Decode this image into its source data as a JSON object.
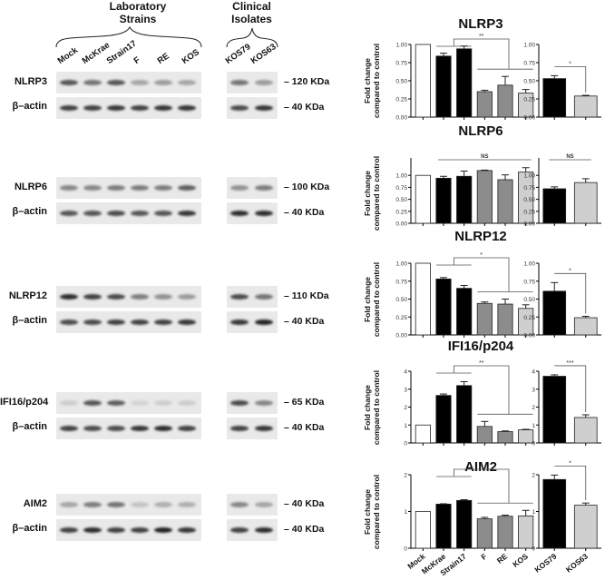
{
  "blot": {
    "group_headers": {
      "laboratory": "Laboratory\nStrains",
      "laboratory_line1": "Laboratory",
      "laboratory_line2": "Strains",
      "clinical_line1": "Clinical",
      "clinical_line2": "Isolates"
    },
    "lab_lanes": [
      "Mock",
      "McKrae",
      "Strain17",
      "F",
      "RE",
      "KOS"
    ],
    "clinical_lanes": [
      "KOS79",
      "KOS63"
    ],
    "rows": [
      {
        "target": "NLRP3",
        "target_kda": "120 KDa",
        "loading": "β–actin",
        "loading_kda": "40 KDa",
        "target_intensity_lab": [
          0.75,
          0.6,
          0.75,
          0.35,
          0.4,
          0.35
        ],
        "target_intensity_clin": [
          0.6,
          0.4
        ],
        "actin_intensity_lab": [
          0.85,
          0.85,
          0.9,
          0.85,
          0.9,
          0.9
        ],
        "actin_intensity_clin": [
          0.8,
          0.9
        ]
      },
      {
        "target": "NLRP6",
        "target_kda": "100 KDa",
        "loading": "β–actin",
        "loading_kda": "40 KDa",
        "target_intensity_lab": [
          0.5,
          0.5,
          0.55,
          0.55,
          0.55,
          0.7
        ],
        "target_intensity_clin": [
          0.45,
          0.55
        ],
        "actin_intensity_lab": [
          0.75,
          0.75,
          0.8,
          0.75,
          0.75,
          0.9
        ],
        "actin_intensity_clin": [
          0.95,
          0.95
        ]
      },
      {
        "target": "NLRP12",
        "target_kda": "110 KDa",
        "loading": "β–actin",
        "loading_kda": "40 KDa",
        "target_intensity_lab": [
          0.95,
          0.85,
          0.8,
          0.55,
          0.45,
          0.4
        ],
        "target_intensity_clin": [
          0.8,
          0.6
        ],
        "actin_intensity_lab": [
          0.8,
          0.8,
          0.85,
          0.85,
          0.85,
          0.9
        ],
        "actin_intensity_clin": [
          0.9,
          1.0
        ]
      },
      {
        "target": "IFI16/p204",
        "target_kda": "65 KDa",
        "loading": "β–actin",
        "loading_kda": "40 KDa",
        "target_intensity_lab": [
          0.15,
          0.75,
          0.7,
          0.12,
          0.15,
          0.15
        ],
        "target_intensity_clin": [
          0.8,
          0.5
        ],
        "actin_intensity_lab": [
          0.85,
          0.8,
          0.8,
          0.9,
          0.95,
          0.85
        ],
        "actin_intensity_clin": [
          0.85,
          0.9
        ]
      },
      {
        "target": "AIM2",
        "target_kda": "40 KDa",
        "loading": "β–actin",
        "loading_kda": "40 KDa",
        "target_intensity_lab": [
          0.35,
          0.55,
          0.6,
          0.2,
          0.3,
          0.3
        ],
        "target_intensity_clin": [
          0.5,
          0.35
        ],
        "actin_intensity_lab": [
          0.85,
          0.95,
          0.85,
          0.85,
          1.0,
          0.9
        ],
        "actin_intensity_clin": [
          0.85,
          0.95
        ]
      }
    ]
  },
  "chart_data": [
    {
      "type": "bar",
      "title": "NLRP3",
      "ylabel": "Fold change compared to control",
      "ylabel_line1": "Fold change",
      "ylabel_line2": "compared to control",
      "panels": [
        {
          "categories": [
            "Mock",
            "McKrae",
            "Strain17",
            "F",
            "RE",
            "KOS"
          ],
          "values": [
            1.0,
            0.84,
            0.94,
            0.35,
            0.44,
            0.33
          ],
          "errors": [
            0,
            0.04,
            0.04,
            0.02,
            0.12,
            0.05
          ],
          "colors": [
            "#ffffff",
            "#000000",
            "#000000",
            "#8c8c8c",
            "#8c8c8c",
            "#cfcfcf"
          ],
          "ylim": [
            0,
            1.0
          ],
          "yticks": [
            "0.00",
            "0.25",
            "0.50",
            "0.75",
            "1.00"
          ],
          "ytick_values": [
            0,
            0.25,
            0.5,
            0.75,
            1.0
          ],
          "significance": "**"
        },
        {
          "categories": [
            "KOS79",
            "KOS63"
          ],
          "values": [
            0.53,
            0.29
          ],
          "errors": [
            0.04,
            0.01
          ],
          "colors": [
            "#000000",
            "#cfcfcf"
          ],
          "ylim": [
            0,
            1.0
          ],
          "yticks": [
            "0.00",
            "0.25",
            "0.50",
            "0.75",
            "1.00"
          ],
          "ytick_values": [
            0,
            0.25,
            0.5,
            0.75,
            1.0
          ],
          "significance": "*"
        }
      ]
    },
    {
      "type": "bar",
      "title": "NLRP6",
      "ylabel": "Fold change compared to control",
      "ylabel_line1": "Fold change",
      "ylabel_line2": "compared to control",
      "panels": [
        {
          "categories": [
            "Mock",
            "McKrae",
            "Strain17",
            "F",
            "RE",
            "KOS"
          ],
          "values": [
            1.0,
            0.94,
            0.98,
            1.1,
            0.91,
            1.07
          ],
          "errors": [
            0,
            0.04,
            0.11,
            0.01,
            0.1,
            0.09
          ],
          "colors": [
            "#ffffff",
            "#000000",
            "#000000",
            "#8c8c8c",
            "#8c8c8c",
            "#cfcfcf"
          ],
          "ylim": [
            0,
            1.25
          ],
          "yticks": [
            "0.00",
            "0.25",
            "0.50",
            "0.75",
            "1.00"
          ],
          "ytick_values": [
            0,
            0.25,
            0.5,
            0.75,
            1.0
          ],
          "significance": "NS"
        },
        {
          "categories": [
            "KOS79",
            "KOS63"
          ],
          "values": [
            0.72,
            0.85
          ],
          "errors": [
            0.04,
            0.08
          ],
          "colors": [
            "#000000",
            "#cfcfcf"
          ],
          "ylim": [
            0,
            1.25
          ],
          "yticks": [
            "0.00",
            "0.25",
            "0.50",
            "0.75",
            "1.00"
          ],
          "ytick_values": [
            0,
            0.25,
            0.5,
            0.75,
            1.0
          ],
          "significance": "NS"
        }
      ]
    },
    {
      "type": "bar",
      "title": "NLRP12",
      "ylabel": "Fold change compared to control",
      "ylabel_line1": "Fold change",
      "ylabel_line2": "compared to control",
      "panels": [
        {
          "categories": [
            "Mock",
            "McKrae",
            "Strain17",
            "F",
            "RE",
            "KOS"
          ],
          "values": [
            1.0,
            0.78,
            0.65,
            0.44,
            0.43,
            0.37
          ],
          "errors": [
            0,
            0.02,
            0.04,
            0.02,
            0.07,
            0.05
          ],
          "colors": [
            "#ffffff",
            "#000000",
            "#000000",
            "#8c8c8c",
            "#8c8c8c",
            "#cfcfcf"
          ],
          "ylim": [
            0,
            1.0
          ],
          "yticks": [
            "0.00",
            "0.25",
            "0.50",
            "0.75",
            "1.00"
          ],
          "ytick_values": [
            0,
            0.25,
            0.5,
            0.75,
            1.0
          ],
          "significance": "*"
        },
        {
          "categories": [
            "KOS79",
            "KOS63"
          ],
          "values": [
            0.61,
            0.24
          ],
          "errors": [
            0.12,
            0.02
          ],
          "colors": [
            "#000000",
            "#cfcfcf"
          ],
          "ylim": [
            0,
            1.0
          ],
          "yticks": [
            "0.00",
            "0.25",
            "0.50",
            "0.75",
            "1.00"
          ],
          "ytick_values": [
            0,
            0.25,
            0.5,
            0.75,
            1.0
          ],
          "significance": "*"
        }
      ]
    },
    {
      "type": "bar",
      "title": "IFI16/p204",
      "ylabel": "Fold change compared to control",
      "ylabel_line1": "Fold change",
      "ylabel_line2": "compared to control",
      "panels": [
        {
          "categories": [
            "Mock",
            "McKrae",
            "Strain17",
            "F",
            "RE",
            "KOS"
          ],
          "values": [
            1.0,
            2.65,
            3.2,
            0.92,
            0.63,
            0.73
          ],
          "errors": [
            0,
            0.08,
            0.22,
            0.28,
            0.04,
            0.03
          ],
          "colors": [
            "#ffffff",
            "#000000",
            "#000000",
            "#8c8c8c",
            "#8c8c8c",
            "#cfcfcf"
          ],
          "ylim": [
            0,
            4
          ],
          "yticks": [
            "0",
            "1",
            "2",
            "3",
            "4"
          ],
          "ytick_values": [
            0,
            1,
            2,
            3,
            4
          ],
          "significance": "**"
        },
        {
          "categories": [
            "KOS79",
            "KOS63"
          ],
          "values": [
            3.72,
            1.42
          ],
          "errors": [
            0.08,
            0.15
          ],
          "colors": [
            "#000000",
            "#cfcfcf"
          ],
          "ylim": [
            0,
            4
          ],
          "yticks": [
            "0",
            "1",
            "2",
            "3",
            "4"
          ],
          "ytick_values": [
            0,
            1,
            2,
            3,
            4
          ],
          "significance": "***"
        }
      ]
    },
    {
      "type": "bar",
      "title": "AIM2",
      "ylabel": "Fold change compared to control",
      "ylabel_line1": "Fold change",
      "ylabel_line2": "compared to control",
      "panels": [
        {
          "categories": [
            "Mock",
            "McKrae",
            "Strain17",
            "F",
            "RE",
            "KOS"
          ],
          "values": [
            1.0,
            1.2,
            1.3,
            0.8,
            0.87,
            0.88
          ],
          "errors": [
            0,
            0.01,
            0.02,
            0.04,
            0.03,
            0.15
          ],
          "colors": [
            "#ffffff",
            "#000000",
            "#000000",
            "#8c8c8c",
            "#8c8c8c",
            "#cfcfcf"
          ],
          "ylim": [
            0,
            2
          ],
          "yticks": [
            "0",
            "1",
            "2"
          ],
          "ytick_values": [
            0,
            1,
            2
          ],
          "significance": "*"
        },
        {
          "categories": [
            "KOS79",
            "KOS63"
          ],
          "values": [
            1.87,
            1.17
          ],
          "errors": [
            0.12,
            0.06
          ],
          "colors": [
            "#000000",
            "#cfcfcf"
          ],
          "ylim": [
            0,
            2
          ],
          "yticks": [
            "0",
            "1",
            "2"
          ],
          "ytick_values": [
            0,
            1,
            2
          ],
          "significance": "*"
        }
      ]
    }
  ]
}
